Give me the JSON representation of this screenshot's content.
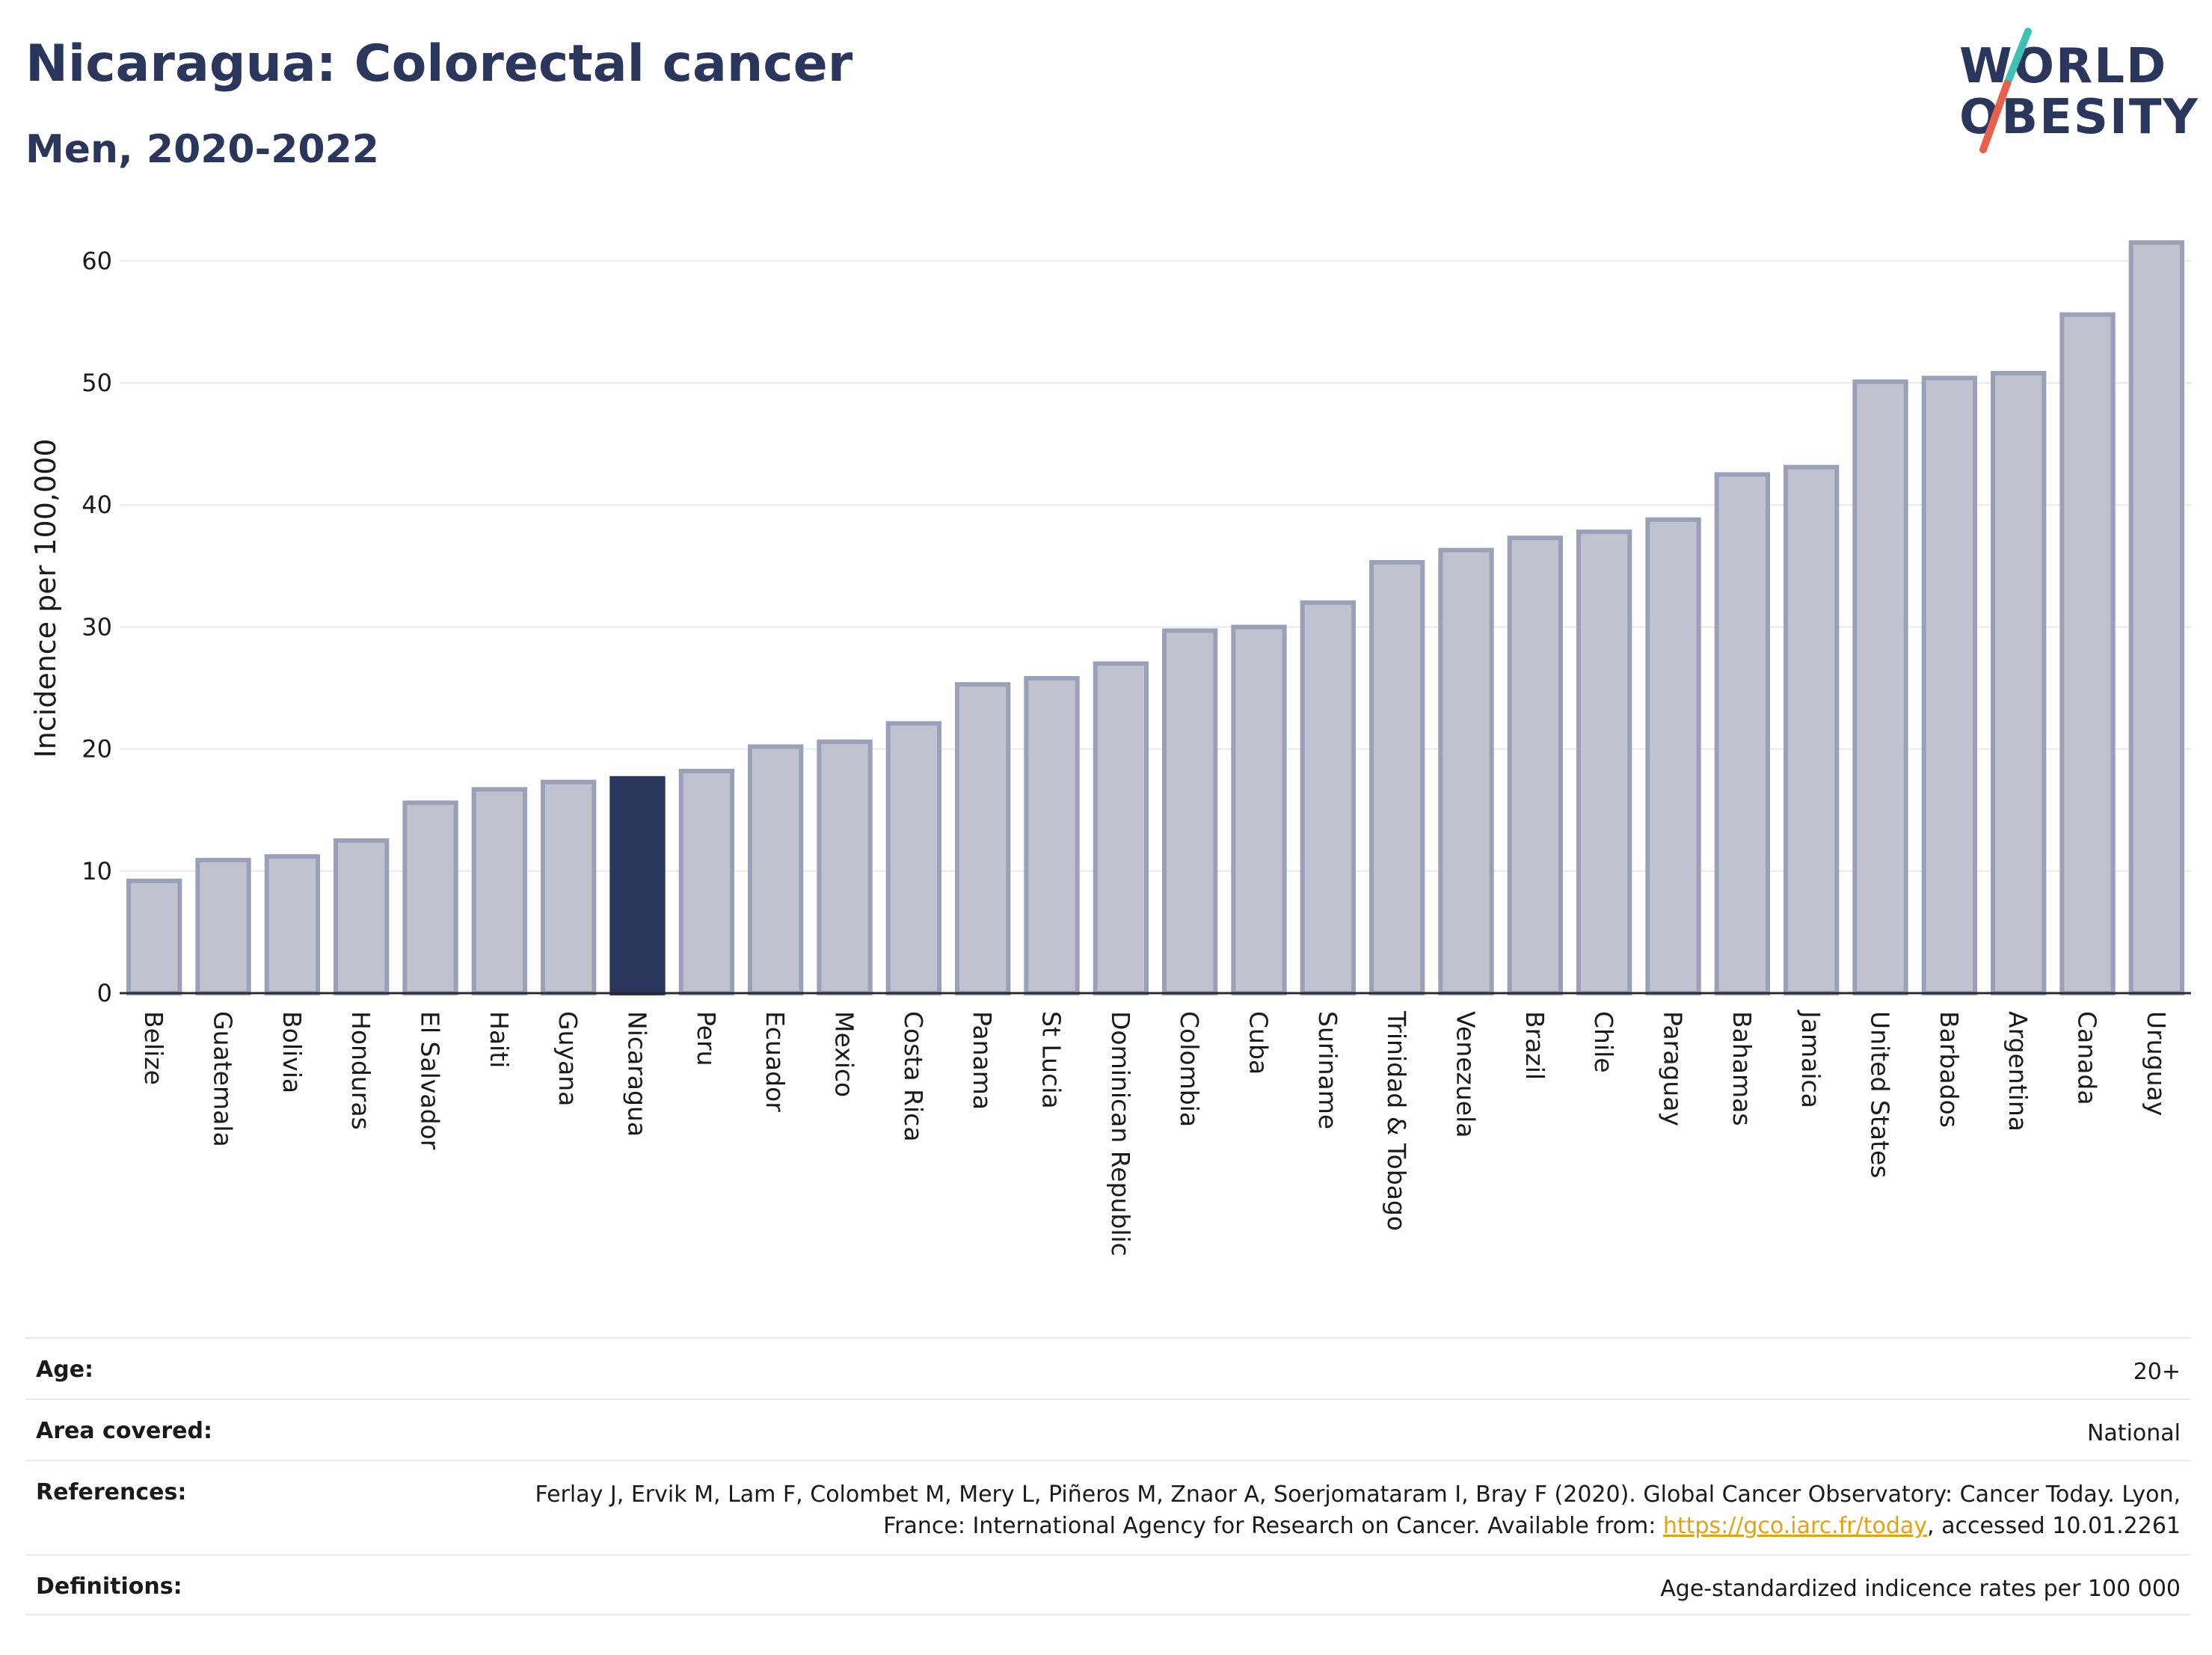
{
  "header": {
    "title": "Nicaragua: Colorectal cancer",
    "subtitle": "Men, 2020-2022"
  },
  "logo": {
    "line1": "WORLD",
    "line2": "OBESITY",
    "colors": {
      "text": "#2b365d",
      "accent_teal": "#3ec1b4",
      "accent_red": "#e8604c"
    }
  },
  "colors": {
    "highlight_bar": "#2b365d",
    "other_bar_fill": "#bfc3d0",
    "other_bar_stroke": "#9aa0b8",
    "grid": "#e8e8ee",
    "axis": "#2b2b2b"
  },
  "chart_data": {
    "type": "bar",
    "title": "Nicaragua: Colorectal cancer",
    "subtitle": "Men, 2020-2022",
    "xlabel": "",
    "ylabel": "Incidence per 100,000",
    "ylim": [
      0,
      63
    ],
    "yticks": [
      0,
      10,
      20,
      30,
      40,
      50,
      60
    ],
    "grid": true,
    "highlight": "Nicaragua",
    "categories": [
      "Belize",
      "Guatemala",
      "Bolivia",
      "Honduras",
      "El Salvador",
      "Haiti",
      "Guyana",
      "Nicaragua",
      "Peru",
      "Ecuador",
      "Mexico",
      "Costa Rica",
      "Panama",
      "St Lucia",
      "Dominican Republic",
      "Colombia",
      "Cuba",
      "Suriname",
      "Trinidad & Tobago",
      "Venezuela",
      "Brazil",
      "Chile",
      "Paraguay",
      "Bahamas",
      "Jamaica",
      "United States",
      "Barbados",
      "Argentina",
      "Canada",
      "Uruguay"
    ],
    "values": [
      9.2,
      10.9,
      11.2,
      12.5,
      15.6,
      16.7,
      17.3,
      17.6,
      18.2,
      20.2,
      20.6,
      22.1,
      25.3,
      25.8,
      27.0,
      29.7,
      30.0,
      32.0,
      35.3,
      36.3,
      37.3,
      37.8,
      38.8,
      42.5,
      43.1,
      50.1,
      50.4,
      50.8,
      55.6,
      61.5
    ]
  },
  "info": {
    "age_label": "Age:",
    "age_value": "20+",
    "area_label": "Area covered:",
    "area_value": "National",
    "references_label": "References:",
    "references_text_1": "Ferlay J, Ervik M, Lam F, Colombet M, Mery L, Piñeros M, Znaor A, Soerjomataram I, Bray F (2020). Global Cancer Observatory: Cancer Today. Lyon, France: International Agency for Research on Cancer. Available from: ",
    "references_link": "https://gco.iarc.fr/today",
    "references_text_2": ", accessed 10.01.2261",
    "definitions_label": "Definitions:",
    "definitions_value": "Age-standardized indicence rates per 100 000"
  }
}
